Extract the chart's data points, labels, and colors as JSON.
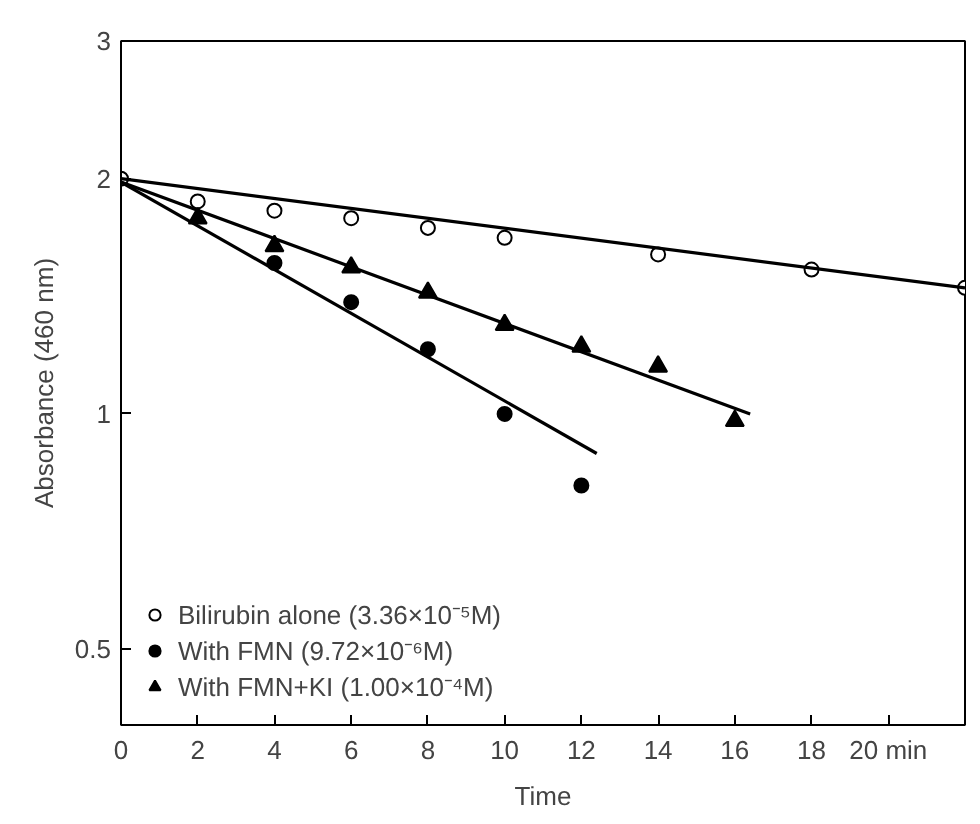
{
  "chart_data": {
    "type": "scatter",
    "xlabel": "Time",
    "ylabel": "Absorbance (460 nm)",
    "log": "y",
    "xlim": [
      0,
      22
    ],
    "ylim": [
      0.4,
      3
    ],
    "xticks": [
      0,
      2,
      4,
      6,
      8,
      10,
      12,
      14,
      16,
      18,
      {
        "value": 20,
        "label": "20 min"
      }
    ],
    "yticks": [
      0.5,
      1,
      2,
      3
    ],
    "grid": false,
    "legend": "bottom left",
    "series": [
      {
        "name": "Bilirubin alone (3.36×10⁻⁵M)",
        "color": "#ffffff",
        "marker": "circle",
        "x": [
          0,
          2,
          4,
          6,
          8,
          10,
          14,
          18,
          22
        ],
        "values": [
          2.0,
          1.87,
          1.82,
          1.78,
          1.73,
          1.68,
          1.6,
          1.53,
          1.45
        ]
      },
      {
        "name": "With FMN (9.72×10⁻⁶M)",
        "color": "#000000",
        "marker": "circle",
        "x": [
          4,
          6,
          8,
          10,
          12
        ],
        "values": [
          1.56,
          1.39,
          1.21,
          1.0,
          0.81
        ]
      },
      {
        "name": "With FMN+KI (1.00×10⁻⁴M)",
        "color": "#000000",
        "marker": "triangle",
        "x": [
          2,
          4,
          6,
          8,
          10,
          12,
          14,
          16
        ],
        "values": [
          1.78,
          1.64,
          1.54,
          1.43,
          1.3,
          1.22,
          1.15,
          0.98
        ]
      },
      {
        "type": "line",
        "color": "#000000",
        "marker": "none",
        "x": [
          0,
          22
        ],
        "values": [
          2.0,
          1.45
        ]
      },
      {
        "type": "line",
        "color": "#000000",
        "marker": "none",
        "x": [
          0,
          12.4
        ],
        "values": [
          1.98,
          0.89
        ]
      },
      {
        "type": "line",
        "color": "#000000",
        "marker": "none",
        "x": [
          0,
          16.4
        ],
        "values": [
          1.98,
          1.0
        ]
      }
    ]
  }
}
